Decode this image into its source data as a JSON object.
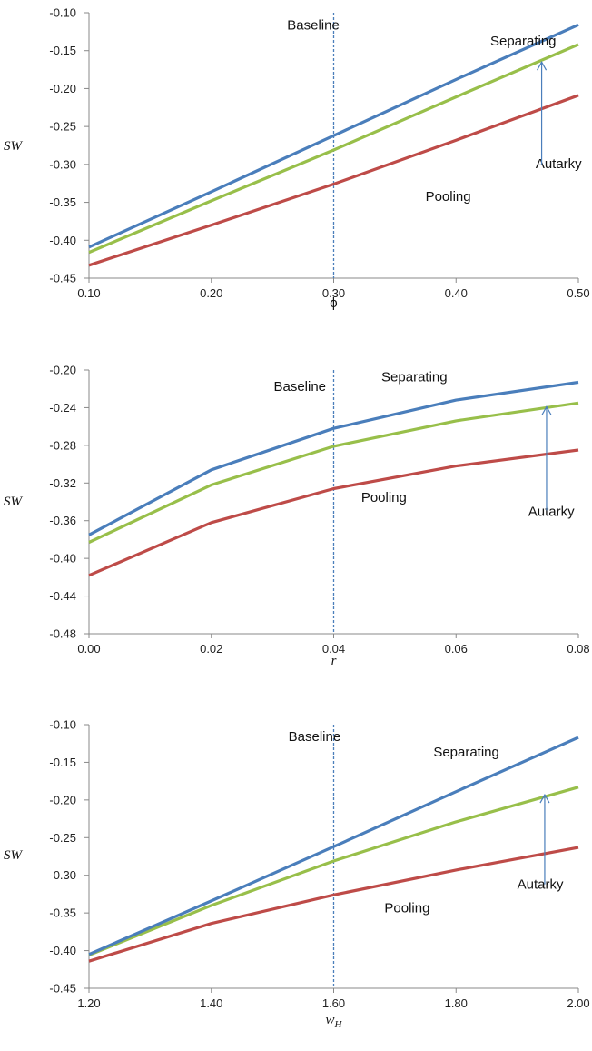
{
  "colors": {
    "separating": "#4a7ebb",
    "autarky": "#98bf4a",
    "pooling": "#be4b48",
    "baseline": "#4a7ebb",
    "axis": "#888888",
    "arrow": "#4a7ebb"
  },
  "chart_data": [
    {
      "type": "line",
      "xlabel": "ϕ",
      "ylabel": "SW",
      "x": [
        0.1,
        0.2,
        0.3,
        0.4,
        0.5
      ],
      "xticks": [
        "0.10",
        "0.20",
        "0.30",
        "0.40",
        "0.50"
      ],
      "xlim": [
        0.1,
        0.5
      ],
      "ylim": [
        -0.45,
        -0.1
      ],
      "yticks": [
        -0.1,
        -0.15,
        -0.2,
        -0.25,
        -0.3,
        -0.35,
        -0.4,
        -0.45
      ],
      "ytick_labels": [
        "-0.10",
        "-0.15",
        "-0.20",
        "-0.25",
        "-0.30",
        "-0.35",
        "-0.40",
        "-0.45"
      ],
      "baseline_x": 0.3,
      "series": [
        {
          "name": "Separating",
          "color_key": "separating",
          "values": [
            -0.409,
            -0.336,
            -0.262,
            -0.188,
            -0.116
          ]
        },
        {
          "name": "Autarky",
          "color_key": "autarky",
          "values": [
            -0.416,
            -0.348,
            -0.281,
            -0.211,
            -0.142
          ]
        },
        {
          "name": "Pooling",
          "color_key": "pooling",
          "values": [
            -0.433,
            -0.38,
            -0.326,
            -0.268,
            -0.209
          ]
        }
      ],
      "annotations": {
        "baseline": "Baseline",
        "separating": "Separating",
        "pooling": "Pooling",
        "autarky": "Autarky"
      }
    },
    {
      "type": "line",
      "xlabel": "r",
      "ylabel": "SW",
      "x": [
        0.0,
        0.02,
        0.04,
        0.06,
        0.08
      ],
      "xticks": [
        "0.00",
        "0.02",
        "0.04",
        "0.06",
        "0.08"
      ],
      "xlim": [
        0.0,
        0.08
      ],
      "ylim": [
        -0.48,
        -0.2
      ],
      "yticks": [
        -0.2,
        -0.24,
        -0.28,
        -0.32,
        -0.36,
        -0.4,
        -0.44,
        -0.48
      ],
      "ytick_labels": [
        "-0.20",
        "-0.24",
        "-0.28",
        "-0.32",
        "-0.36",
        "-0.40",
        "-0.44",
        "-0.48"
      ],
      "baseline_x": 0.04,
      "series": [
        {
          "name": "Separating",
          "color_key": "separating",
          "values": [
            -0.375,
            -0.306,
            -0.262,
            -0.232,
            -0.213
          ]
        },
        {
          "name": "Autarky",
          "color_key": "autarky",
          "values": [
            -0.383,
            -0.322,
            -0.281,
            -0.254,
            -0.235
          ]
        },
        {
          "name": "Pooling",
          "color_key": "pooling",
          "values": [
            -0.418,
            -0.362,
            -0.326,
            -0.302,
            -0.285
          ]
        }
      ],
      "annotations": {
        "baseline": "Baseline",
        "separating": "Separating",
        "pooling": "Pooling",
        "autarky": "Autarky"
      }
    },
    {
      "type": "line",
      "xlabel": "w",
      "xlabel_sub": "H",
      "ylabel": "SW",
      "x": [
        1.2,
        1.4,
        1.6,
        1.8,
        2.0
      ],
      "xticks": [
        "1.20",
        "1.40",
        "1.60",
        "1.80",
        "2.00"
      ],
      "xlim": [
        1.2,
        2.0
      ],
      "ylim": [
        -0.45,
        -0.1
      ],
      "yticks": [
        -0.1,
        -0.15,
        -0.2,
        -0.25,
        -0.3,
        -0.35,
        -0.4,
        -0.45
      ],
      "ytick_labels": [
        "-0.10",
        "-0.15",
        "-0.20",
        "-0.25",
        "-0.30",
        "-0.35",
        "-0.40",
        "-0.45"
      ],
      "baseline_x": 1.6,
      "series": [
        {
          "name": "Separating",
          "color_key": "separating",
          "values": [
            -0.405,
            -0.334,
            -0.262,
            -0.189,
            -0.117
          ]
        },
        {
          "name": "Autarky",
          "color_key": "autarky",
          "values": [
            -0.406,
            -0.34,
            -0.281,
            -0.229,
            -0.183
          ]
        },
        {
          "name": "Pooling",
          "color_key": "pooling",
          "values": [
            -0.414,
            -0.364,
            -0.326,
            -0.293,
            -0.263
          ]
        }
      ],
      "annotations": {
        "baseline": "Baseline",
        "separating": "Separating",
        "pooling": "Pooling",
        "autarky": "Autarky"
      }
    }
  ]
}
